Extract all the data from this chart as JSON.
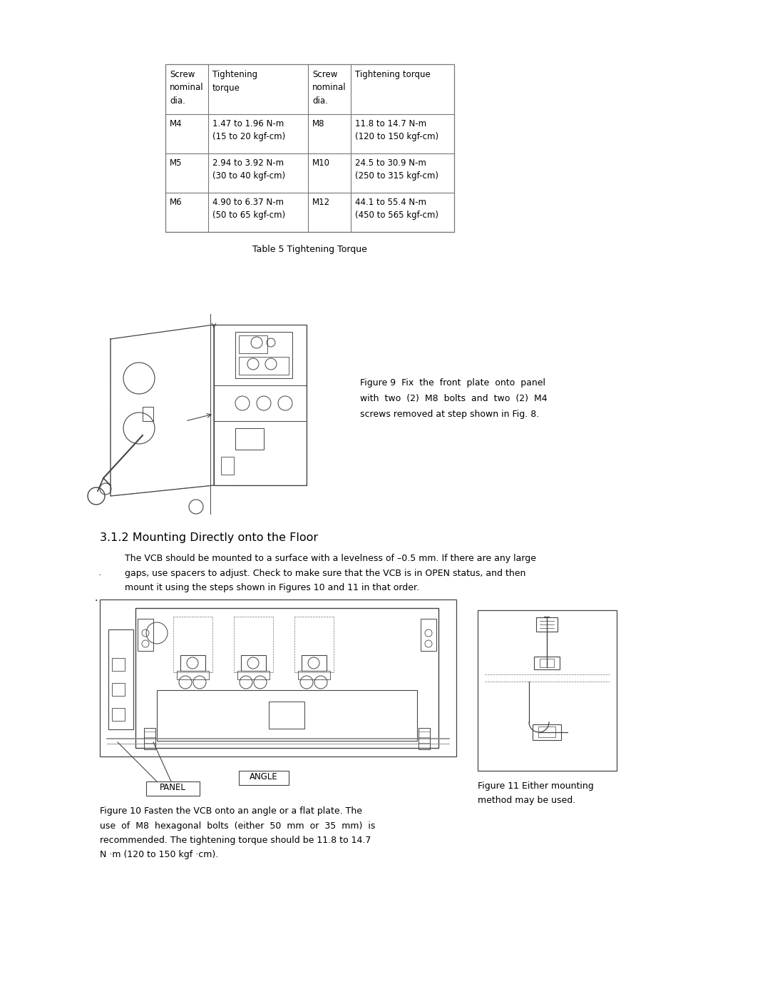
{
  "bg_color": "#ffffff",
  "page_width": 10.8,
  "page_height": 13.97,
  "table_caption": "Table 5 Tightening Torque",
  "table_headers_left": [
    "Screw\nnominal\ndia.",
    "Tightening\ntorque"
  ],
  "table_headers_right": [
    "Screw\nnominal\ndia.",
    "Tightening torque"
  ],
  "table_rows": [
    [
      "M4",
      "1.47 to 1.96 N-m\n(15 to 20 kgf-cm)",
      "M8",
      "11.8 to 14.7 N-m\n(120 to 150 kgf-cm)"
    ],
    [
      "M5",
      "2.94 to 3.92 N-m\n(30 to 40 kgf-cm)",
      "M10",
      "24.5 to 30.9 N-m\n(250 to 315 kgf-cm)"
    ],
    [
      "M6",
      "4.90 to 6.37 N-m\n(50 to 65 kgf-cm)",
      "M12",
      "44.1 to 55.4 N-m\n(450 to 565 kgf-cm)"
    ]
  ],
  "fig9_caption": "Figure 9  Fix  the  front  plate  onto  panel\nwith  two  (2)  M8  bolts  and  two  (2)  M4\nscrews removed at step shown in Fig. 8.",
  "section_title": "3.1.2 Mounting Directly onto the Floor",
  "section_text": "The VCB should be mounted to a surface with a levelness of –0.5 mm. If there are any large\ngaps, use spacers to adjust. Check to make sure that the VCB is in OPEN status, and then\nmount it using the steps shown in Figures 10 and 11 in that order.",
  "fig10_caption": "Figure 10 Fasten the VCB onto an angle or a flat plate. The\nuse  of  M8  hexagonal  bolts  (either  50  mm  or  35  mm)  is\nrecommended. The tightening torque should be 11.8 to 14.7\nN ·m (120 to 150 kgf ·cm).",
  "fig11_caption": "Figure 11 Either mounting\nmethod may be used.",
  "text_color": "#000000",
  "table_border_color": "#777777",
  "draw_color": "#444444"
}
